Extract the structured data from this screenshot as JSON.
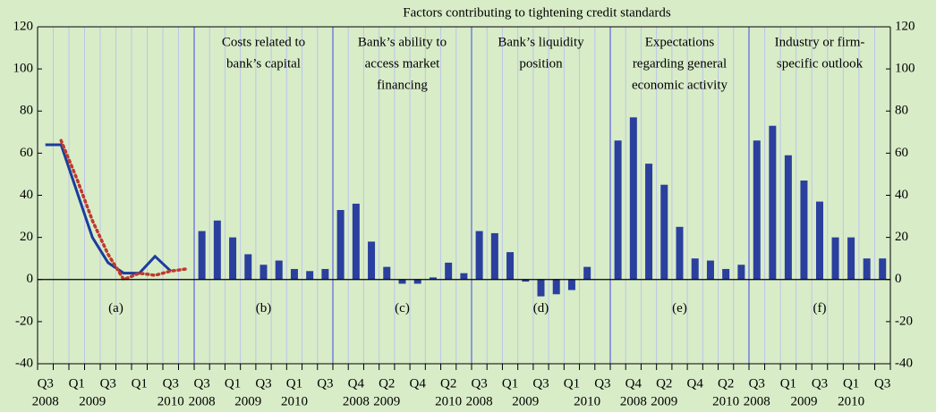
{
  "title": "Factors contributing to tightening credit standards",
  "chart_data": [
    {
      "type": "line",
      "label": "(a)",
      "ylim": [
        -40,
        120
      ],
      "yticks": [
        -40,
        -20,
        0,
        20,
        40,
        60,
        80,
        100,
        120
      ],
      "grid": true,
      "categories": [
        "Q3",
        null,
        "Q1",
        null,
        "Q3",
        null,
        "Q1",
        null,
        "Q3",
        null
      ],
      "years": [
        "2008",
        null,
        null,
        "2009",
        null,
        null,
        null,
        null,
        "2010",
        null
      ],
      "series": [
        {
          "color": "#1c3c9c",
          "dash": false,
          "values": [
            64,
            64,
            42,
            20,
            8,
            3,
            3,
            11,
            4,
            null
          ]
        },
        {
          "color": "#c0392b",
          "dash": true,
          "values": [
            null,
            66,
            48,
            28,
            12,
            0,
            3,
            2,
            4,
            5
          ]
        }
      ]
    },
    {
      "type": "bar",
      "label": "(b)",
      "title_lines": [
        "Costs related to",
        "bank’s capital"
      ],
      "color": "#2a3f9e",
      "categories": [
        "Q3",
        null,
        "Q1",
        null,
        "Q3",
        null,
        "Q1",
        null,
        "Q3"
      ],
      "years": [
        "2008",
        null,
        null,
        "2009",
        null,
        null,
        "2010",
        null,
        null
      ],
      "values": [
        23,
        28,
        20,
        12,
        7,
        9,
        5,
        4,
        5
      ]
    },
    {
      "type": "bar",
      "label": "(c)",
      "title_lines": [
        "Bank’s ability to",
        "access market",
        "financing"
      ],
      "color": "#2a3f9e",
      "categories": [
        null,
        "Q4",
        null,
        "Q2",
        null,
        "Q4",
        null,
        "Q2",
        null
      ],
      "years": [
        null,
        "2008",
        null,
        "2009",
        null,
        null,
        null,
        "2010",
        null
      ],
      "values": [
        33,
        36,
        18,
        6,
        -2,
        -2,
        1,
        8,
        3
      ]
    },
    {
      "type": "bar",
      "label": "(d)",
      "title_lines": [
        "Bank’s liquidity",
        "position"
      ],
      "color": "#2a3f9e",
      "categories": [
        "Q3",
        null,
        "Q1",
        null,
        "Q3",
        null,
        "Q1",
        null,
        "Q3"
      ],
      "years": [
        "2008",
        null,
        null,
        "2009",
        null,
        null,
        null,
        "2010",
        null
      ],
      "values": [
        23,
        22,
        13,
        -1,
        -8,
        -7,
        -5,
        6,
        0
      ]
    },
    {
      "type": "bar",
      "label": "(e)",
      "title_lines": [
        "Expectations",
        "regarding general",
        "economic activity"
      ],
      "color": "#2a3f9e",
      "categories": [
        null,
        "Q4",
        null,
        "Q2",
        null,
        "Q4",
        null,
        "Q2",
        null
      ],
      "years": [
        null,
        "2008",
        null,
        "2009",
        null,
        null,
        null,
        "2010",
        null
      ],
      "values": [
        66,
        77,
        55,
        45,
        25,
        10,
        9,
        5,
        7
      ]
    },
    {
      "type": "bar",
      "label": "(f)",
      "title_lines": [
        "Industry or firm-",
        "specific outlook"
      ],
      "color": "#2a3f9e",
      "categories": [
        "Q3",
        null,
        "Q1",
        null,
        "Q3",
        null,
        "Q1",
        null,
        "Q3"
      ],
      "years": [
        "2008",
        null,
        null,
        "2009",
        null,
        null,
        "2010",
        null,
        null
      ],
      "values": [
        66,
        73,
        59,
        47,
        37,
        20,
        20,
        10,
        10
      ]
    }
  ]
}
